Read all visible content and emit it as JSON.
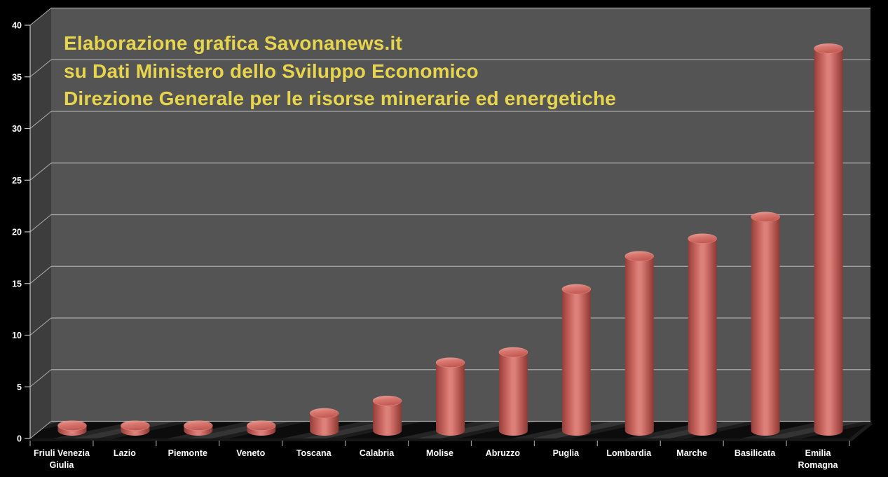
{
  "chart_data": {
    "type": "bar",
    "variant": "3d-cylinder",
    "title_lines": [
      "Elaborazione grafica Savonanews.it",
      "su Dati Ministero dello Sviluppo Economico",
      "Direzione Generale per le risorse minerarie ed energetiche"
    ],
    "categories": [
      "Friuli Venezia Giulia",
      "Lazio",
      "Piemonte",
      "Veneto",
      "Toscana",
      "Calabria",
      "Molise",
      "Abruzzo",
      "Puglia",
      "Lombardia",
      "Marche",
      "Basilicata",
      "Emilia Romagna"
    ],
    "category_label_lines": [
      [
        "Friuli Venezia",
        "Giulia"
      ],
      [
        "Lazio"
      ],
      [
        "Piemonte"
      ],
      [
        "Veneto"
      ],
      [
        "Toscana"
      ],
      [
        "Calabria"
      ],
      [
        "Molise"
      ],
      [
        "Abruzzo"
      ],
      [
        "Puglia"
      ],
      [
        "Lombardia"
      ],
      [
        "Marche"
      ],
      [
        "Basilicata"
      ],
      [
        "Emilia",
        "Romagna"
      ]
    ],
    "values": [
      0.5,
      0.5,
      0.5,
      0.5,
      1.7,
      2.9,
      6.6,
      7.6,
      13.7,
      16.9,
      18.6,
      20.7,
      37
    ],
    "xlabel": "",
    "ylabel": "",
    "yticks": [
      0,
      5,
      10,
      15,
      20,
      25,
      30,
      35,
      40
    ],
    "ylim": [
      0,
      40
    ],
    "grid": true,
    "legend": false,
    "colors": {
      "background": "#000000",
      "back_wall": "#545454",
      "side_wall": "#3d3d3d",
      "gridline": "#a9a9a9",
      "axis_line": "#c4c4c4",
      "tick": "#999999",
      "axis_text": "#ffffff",
      "title_text": "#e7d54d",
      "bar_dark": "#8f3e3a",
      "bar_mid": "#cd6a63",
      "bar_light": "#dd827a",
      "bar_top_light": "#eca198",
      "bar_top_dark": "#c25a53",
      "floor_dark": "#0c0c0c",
      "floor_light": "#343434",
      "slab_edge": "#1c1c1c"
    }
  }
}
